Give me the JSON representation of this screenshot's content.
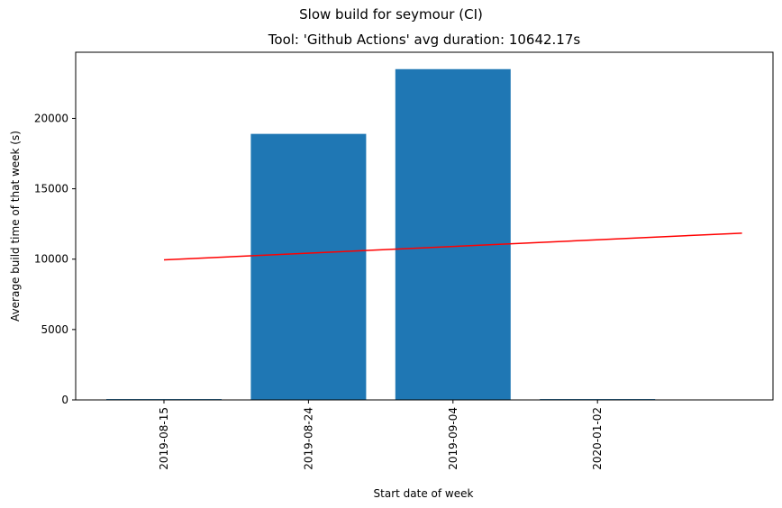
{
  "chart_data": {
    "type": "bar",
    "suptitle": "Slow build for seymour (CI)",
    "title": "Tool: 'Github Actions' avg duration: 10642.17s",
    "xlabel": "Start date of week",
    "ylabel": "Average build time of that week (s)",
    "categories": [
      "2019-08-15",
      "2019-08-24",
      "2019-09-04",
      "2020-01-02"
    ],
    "values": [
      60,
      18900,
      23500,
      60
    ],
    "bar_color": "#1f77b4",
    "ylim": [
      0,
      24700
    ],
    "yticks": [
      0,
      5000,
      10000,
      15000,
      20000
    ],
    "trend_line": {
      "color": "#ff0000",
      "x": [
        0,
        4
      ],
      "y": [
        9950,
        11850
      ]
    },
    "grid": false
  }
}
